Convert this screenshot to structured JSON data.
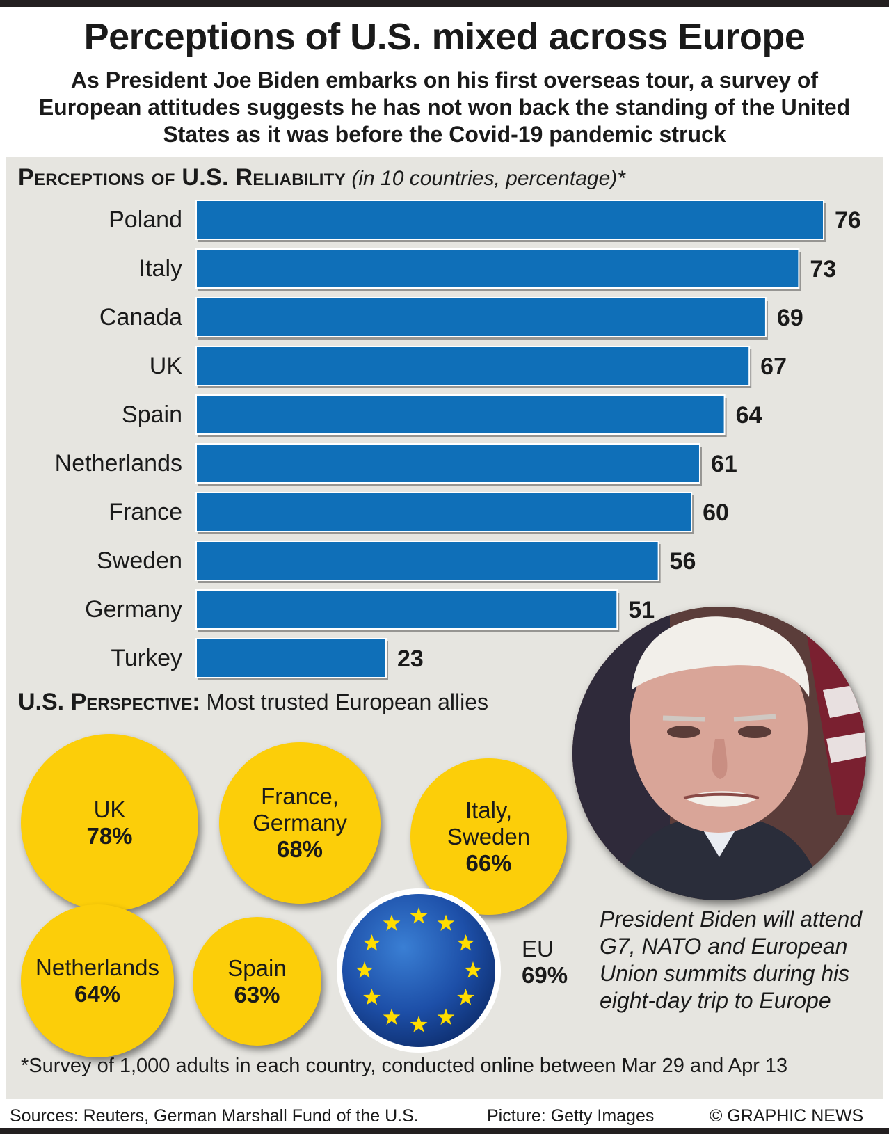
{
  "header": {
    "title": "Perceptions of U.S. mixed across Europe",
    "subtitle": "As President Joe Biden embarks on his first overseas tour, a survey of European attitudes suggests he has not won back the standing of the United States as it was before the Covid-19 pandemic struck"
  },
  "section1": {
    "heading": "Perceptions of U.S. Reliability",
    "note": "(in 10 countries, percentage)*"
  },
  "chart_data": [
    {
      "type": "bar",
      "orientation": "horizontal",
      "title": "Perceptions of U.S. Reliability",
      "subtitle": "(in 10 countries, percentage)*",
      "categories": [
        "Poland",
        "Italy",
        "Canada",
        "UK",
        "Spain",
        "Netherlands",
        "France",
        "Sweden",
        "Germany",
        "Turkey"
      ],
      "values": [
        76,
        73,
        69,
        67,
        64,
        61,
        60,
        56,
        51,
        23
      ],
      "xlim": [
        0,
        76
      ],
      "data_labels": true,
      "grid": false,
      "color": "#0f6fb8"
    },
    {
      "type": "bubble",
      "title": "U.S. Perspective: Most trusted European allies",
      "items": [
        {
          "label": "UK",
          "value": 78
        },
        {
          "label": "France, Germany",
          "value": 68
        },
        {
          "label": "Italy, Sweden",
          "value": 66
        },
        {
          "label": "Netherlands",
          "value": 64
        },
        {
          "label": "Spain",
          "value": 63
        },
        {
          "label": "EU",
          "value": 69
        }
      ],
      "color": "#fcce09"
    }
  ],
  "section2": {
    "heading": "U.S. Perspective:",
    "subheading": "Most trusted European allies"
  },
  "bubbles": {
    "uk": {
      "line1": "UK",
      "pct": "78%"
    },
    "france_germany": {
      "line1": "France,",
      "line2": "Germany",
      "pct": "68%"
    },
    "italy_sweden": {
      "line1": "Italy,",
      "line2": "Sweden",
      "pct": "66%"
    },
    "netherlands": {
      "line1": "Netherlands",
      "pct": "64%"
    },
    "spain": {
      "line1": "Spain",
      "pct": "63%"
    },
    "eu": {
      "line1": "EU",
      "pct": "69%"
    }
  },
  "caption": "President Biden will attend G7, NATO and European Union summits during his eight-day trip to Europe",
  "footnote": "*Survey of 1,000 adults in each country, conducted online between Mar 29 and Apr 13",
  "footer": {
    "sources": "Sources: Reuters, German Marshall Fund of the U.S.",
    "picture": "Picture: Getty Images",
    "copyright": "© GRAPHIC NEWS"
  },
  "colors": {
    "bar": "#0f6fb8",
    "bubble": "#fcce09",
    "panel": "#e6e5e0",
    "eu_flag": "#1d4fa8",
    "eu_star": "#ffdd00"
  },
  "icons": [
    "eu-flag-icon",
    "biden-photo"
  ]
}
